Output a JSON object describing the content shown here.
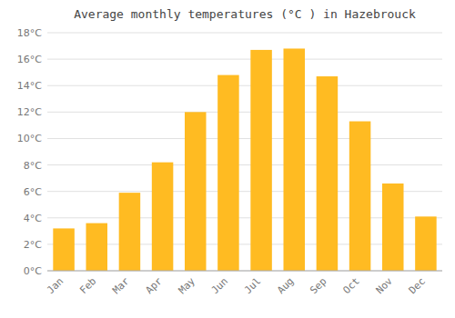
{
  "chart_data": {
    "type": "bar",
    "title": "Average monthly temperatures (°C ) in Hazebrouck",
    "categories": [
      "Jan",
      "Feb",
      "Mar",
      "Apr",
      "May",
      "Jun",
      "Jul",
      "Aug",
      "Sep",
      "Oct",
      "Nov",
      "Dec"
    ],
    "values": [
      3.2,
      3.6,
      5.9,
      8.2,
      12.0,
      14.8,
      16.7,
      16.8,
      14.7,
      11.3,
      6.6,
      4.1
    ],
    "color": "#FFBB22",
    "ylim": [
      0,
      18
    ],
    "yticks": [
      {
        "value": 0,
        "label": "0°C"
      },
      {
        "value": 2,
        "label": "2°C"
      },
      {
        "value": 4,
        "label": "4°C"
      },
      {
        "value": 6,
        "label": "6°C"
      },
      {
        "value": 8,
        "label": "8°C"
      },
      {
        "value": 10,
        "label": "10°C"
      },
      {
        "value": 12,
        "label": "12°C"
      },
      {
        "value": 14,
        "label": "14°C"
      },
      {
        "value": 16,
        "label": "16°C"
      },
      {
        "value": 18,
        "label": "18°C"
      }
    ],
    "grid": true
  }
}
